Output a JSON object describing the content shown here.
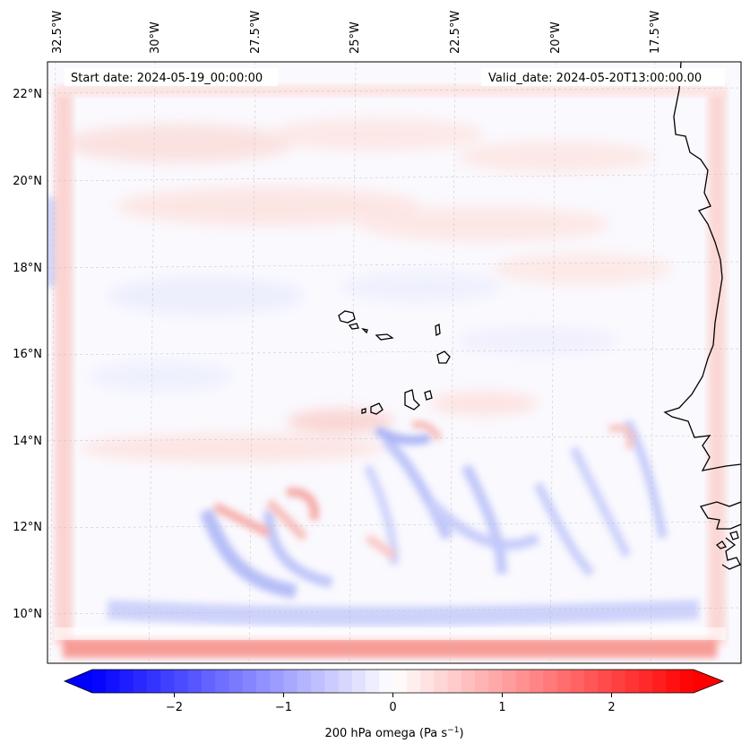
{
  "map": {
    "start_date": "Start date: 2024-05-19_00:00:00",
    "valid_date": "Valid_date: 2024-05-20T13:00:00.00",
    "lon_labels": [
      "32.5°W",
      "30°W",
      "27.5°W",
      "25°W",
      "22.5°W",
      "20°W",
      "17.5°W"
    ],
    "lat_labels": [
      "22°N",
      "20°N",
      "18°N",
      "16°N",
      "14°N",
      "12°N",
      "10°N"
    ],
    "gridlines": true,
    "coastline_color": "#000000",
    "islands": "Cape Verde"
  },
  "colorbar": {
    "label_prefix": "200 hPa omega (Pa s",
    "label_exponent": "−1",
    "label_suffix": ")",
    "tick_labels": [
      "−2",
      "−1",
      "0",
      "1",
      "2"
    ],
    "range": [
      -2.75,
      2.75
    ],
    "colors": {
      "negative": "#0000ff",
      "zero": "#ffffff",
      "positive": "#ff0000"
    }
  }
}
